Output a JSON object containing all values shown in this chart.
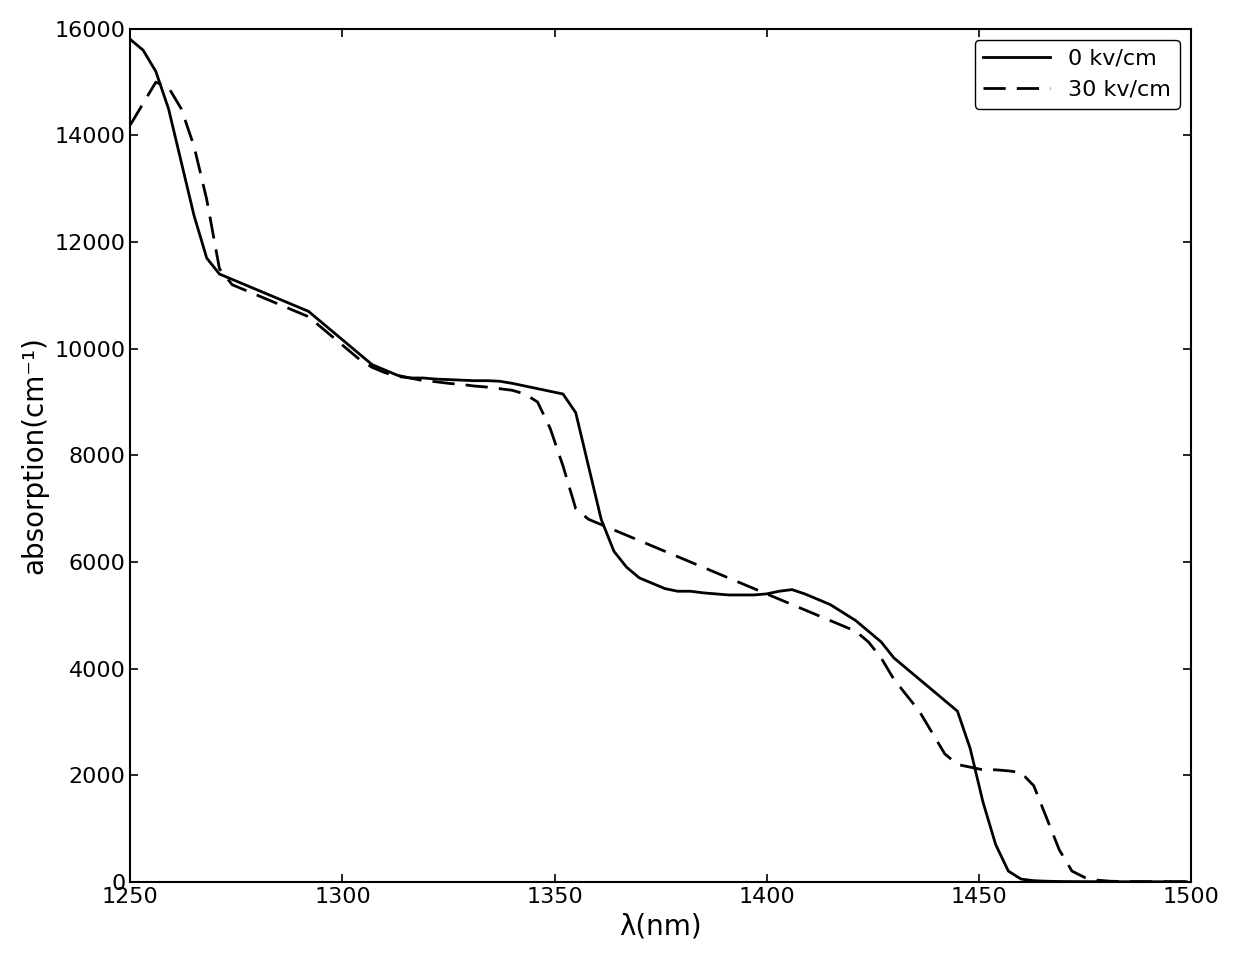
{
  "title": "",
  "xlabel": "λ(nm)",
  "ylabel": "absorption(cm⁻¹)",
  "xlim": [
    1250,
    1500
  ],
  "ylim": [
    0,
    16000
  ],
  "xticks": [
    1250,
    1300,
    1350,
    1400,
    1450,
    1500
  ],
  "yticks": [
    0,
    2000,
    4000,
    6000,
    8000,
    10000,
    12000,
    14000,
    16000
  ],
  "legend_labels": [
    "0 kv/cm",
    "30 kv/cm"
  ],
  "background_color": "#ffffff",
  "line_color": "#000000",
  "solid_x": [
    1250,
    1253,
    1256,
    1259,
    1262,
    1265,
    1268,
    1271,
    1274,
    1277,
    1280,
    1283,
    1286,
    1289,
    1292,
    1295,
    1298,
    1301,
    1304,
    1307,
    1310,
    1313,
    1316,
    1319,
    1322,
    1325,
    1328,
    1331,
    1334,
    1337,
    1340,
    1343,
    1346,
    1349,
    1352,
    1355,
    1358,
    1361,
    1364,
    1367,
    1370,
    1373,
    1376,
    1379,
    1382,
    1385,
    1388,
    1391,
    1394,
    1397,
    1400,
    1403,
    1406,
    1409,
    1412,
    1415,
    1418,
    1421,
    1424,
    1427,
    1430,
    1433,
    1436,
    1439,
    1442,
    1445,
    1448,
    1451,
    1454,
    1457,
    1460,
    1463,
    1466,
    1469,
    1472,
    1475,
    1478,
    1481,
    1484,
    1487,
    1490,
    1493,
    1496,
    1499
  ],
  "solid_y": [
    15800,
    15600,
    15200,
    14500,
    13500,
    12500,
    11700,
    11400,
    11300,
    11200,
    11100,
    11000,
    10900,
    10800,
    10700,
    10500,
    10300,
    10100,
    9900,
    9700,
    9600,
    9500,
    9450,
    9450,
    9430,
    9420,
    9410,
    9400,
    9400,
    9390,
    9350,
    9300,
    9250,
    9200,
    9150,
    8800,
    7800,
    6800,
    6200,
    5900,
    5700,
    5600,
    5500,
    5450,
    5450,
    5420,
    5400,
    5380,
    5380,
    5380,
    5400,
    5450,
    5480,
    5400,
    5300,
    5200,
    5050,
    4900,
    4700,
    4500,
    4200,
    4000,
    3800,
    3600,
    3400,
    3200,
    2500,
    1500,
    700,
    200,
    50,
    20,
    10,
    5,
    3,
    2,
    1,
    0,
    0,
    0,
    0,
    0,
    0,
    0
  ],
  "dashed_x": [
    1250,
    1253,
    1256,
    1259,
    1262,
    1265,
    1268,
    1271,
    1274,
    1277,
    1280,
    1283,
    1286,
    1289,
    1292,
    1295,
    1298,
    1301,
    1304,
    1307,
    1310,
    1313,
    1316,
    1319,
    1322,
    1325,
    1328,
    1331,
    1334,
    1337,
    1340,
    1343,
    1346,
    1349,
    1352,
    1355,
    1358,
    1361,
    1364,
    1367,
    1370,
    1373,
    1376,
    1379,
    1382,
    1385,
    1388,
    1391,
    1394,
    1397,
    1400,
    1403,
    1406,
    1409,
    1412,
    1415,
    1418,
    1421,
    1424,
    1427,
    1430,
    1433,
    1436,
    1439,
    1442,
    1445,
    1448,
    1451,
    1454,
    1457,
    1460,
    1463,
    1466,
    1469,
    1472,
    1475,
    1478,
    1481,
    1484,
    1487,
    1490,
    1493,
    1496,
    1499
  ],
  "dashed_y": [
    14200,
    14600,
    15000,
    14900,
    14500,
    13800,
    12800,
    11500,
    11200,
    11100,
    11000,
    10900,
    10800,
    10700,
    10600,
    10400,
    10200,
    10000,
    9800,
    9650,
    9550,
    9480,
    9450,
    9400,
    9380,
    9350,
    9330,
    9300,
    9280,
    9250,
    9220,
    9150,
    9000,
    8500,
    7800,
    7000,
    6800,
    6700,
    6600,
    6500,
    6400,
    6300,
    6200,
    6100,
    6000,
    5900,
    5800,
    5700,
    5600,
    5500,
    5400,
    5300,
    5200,
    5100,
    5000,
    4900,
    4800,
    4700,
    4500,
    4200,
    3800,
    3500,
    3200,
    2800,
    2400,
    2200,
    2150,
    2100,
    2100,
    2080,
    2050,
    1800,
    1200,
    600,
    200,
    80,
    30,
    10,
    5,
    3,
    2,
    1,
    0,
    0
  ]
}
